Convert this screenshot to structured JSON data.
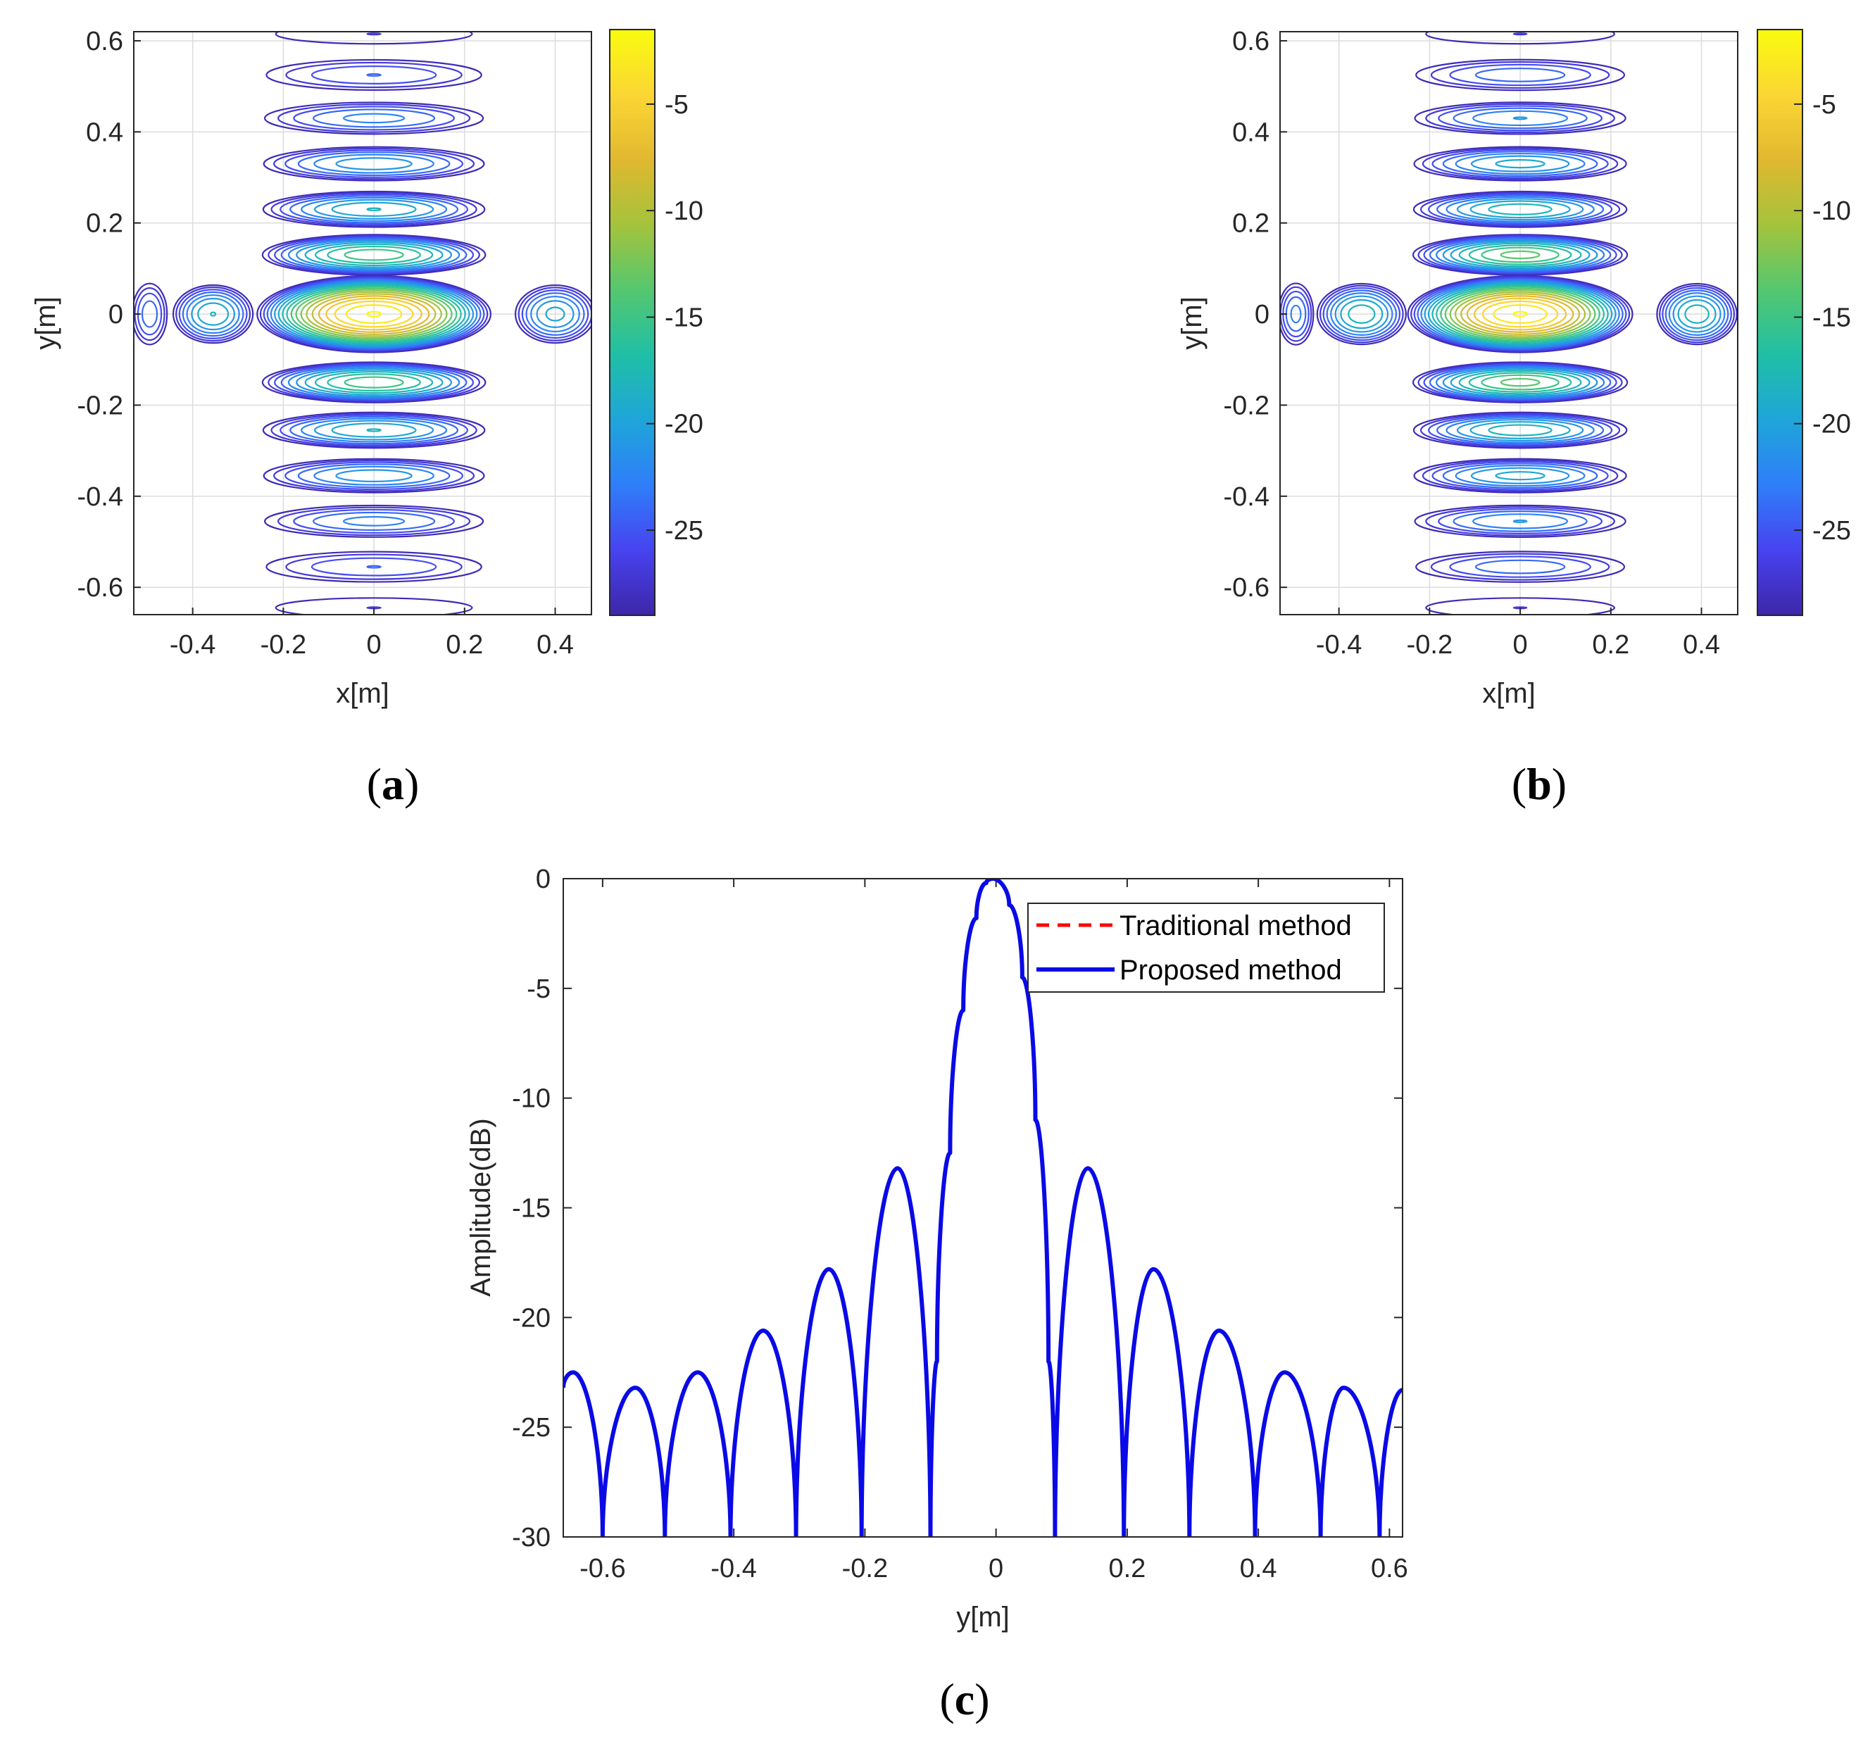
{
  "figure": {
    "panels": [
      {
        "id": "a",
        "label": "a"
      },
      {
        "id": "b",
        "label": "b"
      },
      {
        "id": "c",
        "label": "c"
      }
    ]
  },
  "colors": {
    "parula": [
      "#3e26a8",
      "#4743f0",
      "#2f7ef9",
      "#1fa5d9",
      "#1fbfa6",
      "#55c76f",
      "#a4c33c",
      "#e1b830",
      "#fbd634",
      "#f9fb0e"
    ],
    "traditional": "#ff0000",
    "proposed": "#0a0ae6",
    "grid": "#dcdcdc",
    "axis": "#262626"
  },
  "chart_data": [
    {
      "type": "contour",
      "panel": "a",
      "xlabel": "x[m]",
      "ylabel": "y[m]",
      "xlim": [
        -0.53,
        0.48
      ],
      "ylim": [
        -0.66,
        0.62
      ],
      "xticks": [
        -0.4,
        -0.2,
        0,
        0.2,
        0.4
      ],
      "xtick_labels": [
        "-0.4",
        "-0.2",
        "0",
        "0.2",
        "0.4"
      ],
      "yticks": [
        0.6,
        0.4,
        0.2,
        0,
        -0.2,
        -0.4,
        -0.6
      ],
      "ytick_labels": [
        "0.6",
        "0.4",
        "0.2",
        "0",
        "-0.2",
        "-0.4",
        "-0.6"
      ],
      "colorbar": {
        "min": -29,
        "max": -1.5,
        "ticks": [
          -5,
          -10,
          -15,
          -20,
          -25
        ],
        "tick_labels": [
          "-5",
          "-10",
          "-15",
          "-20",
          "-25"
        ]
      },
      "lobes": [
        {
          "x": 0,
          "y": 0.615,
          "peak": -27,
          "rx": 0.25,
          "ry": 0.025
        },
        {
          "x": 0,
          "y": 0.525,
          "peak": -24,
          "rx": 0.25,
          "ry": 0.035
        },
        {
          "x": 0,
          "y": 0.43,
          "peak": -22,
          "rx": 0.25,
          "ry": 0.036
        },
        {
          "x": 0,
          "y": 0.33,
          "peak": -20,
          "rx": 0.25,
          "ry": 0.038
        },
        {
          "x": 0,
          "y": 0.23,
          "peak": -18,
          "rx": 0.25,
          "ry": 0.04
        },
        {
          "x": 0,
          "y": 0.13,
          "peak": -14,
          "rx": 0.25,
          "ry": 0.045
        },
        {
          "x": 0,
          "y": 0,
          "peak": -1.5,
          "rx": 0.26,
          "ry": 0.085
        },
        {
          "x": 0,
          "y": -0.15,
          "peak": -14,
          "rx": 0.25,
          "ry": 0.045
        },
        {
          "x": 0,
          "y": -0.255,
          "peak": -18,
          "rx": 0.25,
          "ry": 0.04
        },
        {
          "x": 0,
          "y": -0.355,
          "peak": -20,
          "rx": 0.25,
          "ry": 0.038
        },
        {
          "x": 0,
          "y": -0.455,
          "peak": -22,
          "rx": 0.25,
          "ry": 0.036
        },
        {
          "x": 0,
          "y": -0.555,
          "peak": -24,
          "rx": 0.25,
          "ry": 0.035
        },
        {
          "x": 0,
          "y": -0.645,
          "peak": -27,
          "rx": 0.25,
          "ry": 0.025
        },
        {
          "x": -0.355,
          "y": 0,
          "peak": -18,
          "rx": 0.09,
          "ry": 0.065
        },
        {
          "x": -0.495,
          "y": 0,
          "peak": -23,
          "rx": 0.04,
          "ry": 0.07
        },
        {
          "x": 0.4,
          "y": 0,
          "peak": -19,
          "rx": 0.09,
          "ry": 0.065
        }
      ]
    },
    {
      "type": "contour",
      "panel": "b",
      "xlabel": "x[m]",
      "ylabel": "y[m]",
      "xlim": [
        -0.53,
        0.48
      ],
      "ylim": [
        -0.66,
        0.62
      ],
      "xticks": [
        -0.4,
        -0.2,
        0,
        0.2,
        0.4
      ],
      "xtick_labels": [
        "-0.4",
        "-0.2",
        "0",
        "0.2",
        "0.4"
      ],
      "yticks": [
        0.6,
        0.4,
        0.2,
        0,
        -0.2,
        -0.4,
        -0.6
      ],
      "ytick_labels": [
        "0.6",
        "0.4",
        "0.2",
        "0",
        "-0.2",
        "-0.4",
        "-0.6"
      ],
      "colorbar": {
        "min": -29,
        "max": -1.5,
        "ticks": [
          -5,
          -10,
          -15,
          -20,
          -25
        ],
        "tick_labels": [
          "-5",
          "-10",
          "-15",
          "-20",
          "-25"
        ]
      },
      "lobes": [
        {
          "x": 0,
          "y": 0.615,
          "peak": -27,
          "rx": 0.24,
          "ry": 0.025
        },
        {
          "x": 0,
          "y": 0.525,
          "peak": -23,
          "rx": 0.24,
          "ry": 0.035
        },
        {
          "x": 0,
          "y": 0.43,
          "peak": -21,
          "rx": 0.24,
          "ry": 0.036
        },
        {
          "x": 0,
          "y": 0.33,
          "peak": -19,
          "rx": 0.24,
          "ry": 0.038
        },
        {
          "x": 0,
          "y": 0.23,
          "peak": -17,
          "rx": 0.24,
          "ry": 0.04
        },
        {
          "x": 0,
          "y": 0.13,
          "peak": -13,
          "rx": 0.24,
          "ry": 0.045
        },
        {
          "x": 0,
          "y": 0,
          "peak": -1.5,
          "rx": 0.25,
          "ry": 0.085
        },
        {
          "x": 0,
          "y": -0.15,
          "peak": -13,
          "rx": 0.24,
          "ry": 0.045
        },
        {
          "x": 0,
          "y": -0.255,
          "peak": -17,
          "rx": 0.24,
          "ry": 0.04
        },
        {
          "x": 0,
          "y": -0.355,
          "peak": -19,
          "rx": 0.24,
          "ry": 0.038
        },
        {
          "x": 0,
          "y": -0.455,
          "peak": -21,
          "rx": 0.24,
          "ry": 0.036
        },
        {
          "x": 0,
          "y": -0.555,
          "peak": -23,
          "rx": 0.24,
          "ry": 0.035
        },
        {
          "x": 0,
          "y": -0.645,
          "peak": -27,
          "rx": 0.24,
          "ry": 0.025
        },
        {
          "x": -0.35,
          "y": 0,
          "peak": -17,
          "rx": 0.1,
          "ry": 0.068
        },
        {
          "x": -0.495,
          "y": 0,
          "peak": -22,
          "rx": 0.04,
          "ry": 0.07
        },
        {
          "x": 0.39,
          "y": 0,
          "peak": -17,
          "rx": 0.09,
          "ry": 0.068
        }
      ]
    },
    {
      "type": "line",
      "panel": "c",
      "xlabel": "y[m]",
      "ylabel": "Amplitude(dB)",
      "xlim": [
        -0.66,
        0.62
      ],
      "ylim": [
        -30,
        0
      ],
      "xticks": [
        -0.6,
        -0.4,
        -0.2,
        0,
        0.2,
        0.4,
        0.6
      ],
      "xtick_labels": [
        "-0.6",
        "-0.4",
        "-0.2",
        "0",
        "0.2",
        "0.4",
        "0.6"
      ],
      "yticks": [
        0,
        -5,
        -10,
        -15,
        -20,
        -25,
        -30
      ],
      "ytick_labels": [
        "0",
        "-5",
        "-10",
        "-15",
        "-20",
        "-25",
        "-30"
      ],
      "legend": {
        "position": "top-right",
        "entries": [
          "Traditional method",
          "Proposed method"
        ]
      },
      "series": [
        {
          "name": "Traditional method",
          "style": "dashed",
          "x": [
            -0.66,
            -0.645,
            -0.6,
            -0.55,
            -0.505,
            -0.455,
            -0.405,
            -0.355,
            -0.305,
            -0.255,
            -0.205,
            -0.15,
            -0.1,
            -0.09,
            -0.07,
            -0.05,
            -0.03,
            -0.015,
            -0.005,
            0.02,
            0.04,
            0.06,
            0.08,
            0.09,
            0.14,
            0.195,
            0.24,
            0.295,
            0.34,
            0.395,
            0.44,
            0.495,
            0.53,
            0.585,
            0.62
          ],
          "y": [
            -23.2,
            -22.5,
            -30,
            -23.2,
            -30,
            -22.5,
            -30,
            -20.6,
            -30,
            -17.8,
            -30,
            -13.2,
            -30,
            -22,
            -12.5,
            -6,
            -1.8,
            -0.2,
            0,
            -1.2,
            -4.5,
            -11,
            -22,
            -30,
            -13.2,
            -30,
            -17.8,
            -30,
            -20.6,
            -30,
            -22.5,
            -30,
            -23.2,
            -30,
            -23.3
          ]
        },
        {
          "name": "Proposed method",
          "style": "solid",
          "x": [
            -0.66,
            -0.645,
            -0.6,
            -0.55,
            -0.505,
            -0.455,
            -0.405,
            -0.355,
            -0.305,
            -0.255,
            -0.205,
            -0.15,
            -0.1,
            -0.09,
            -0.07,
            -0.05,
            -0.03,
            -0.015,
            -0.005,
            0.02,
            0.04,
            0.06,
            0.08,
            0.09,
            0.14,
            0.195,
            0.24,
            0.295,
            0.34,
            0.395,
            0.44,
            0.495,
            0.53,
            0.585,
            0.62
          ],
          "y": [
            -23.2,
            -22.5,
            -30,
            -23.2,
            -30,
            -22.5,
            -30,
            -20.6,
            -30,
            -17.8,
            -30,
            -13.2,
            -30,
            -22,
            -12.5,
            -6,
            -1.8,
            -0.2,
            0,
            -1.2,
            -4.5,
            -11,
            -22,
            -30,
            -13.2,
            -30,
            -17.8,
            -30,
            -20.6,
            -30,
            -22.5,
            -30,
            -23.2,
            -30,
            -23.3
          ]
        }
      ]
    }
  ]
}
